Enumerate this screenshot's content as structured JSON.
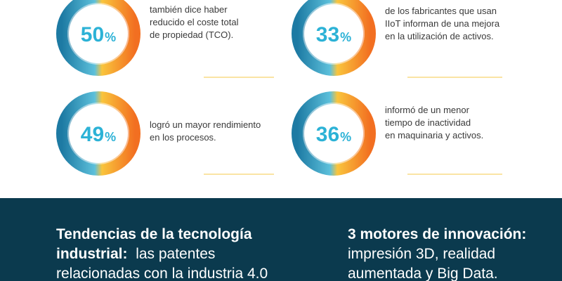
{
  "stats": [
    {
      "value": 50,
      "unit": "%",
      "lines": [
        "también dice haber",
        "reducido el coste total",
        "de propiedad (TCO)."
      ]
    },
    {
      "value": 33,
      "unit": "%",
      "lines": [
        "de los fabricantes que usan",
        "IIoT informan de una mejora",
        "en la utilización de activos."
      ]
    },
    {
      "value": 49,
      "unit": "%",
      "lines": [
        "logró un mayor rendimiento",
        "en los procesos."
      ]
    },
    {
      "value": 36,
      "unit": "%",
      "lines": [
        "informó de un menor",
        "tiempo de inactividad",
        "en maquinaria y activos."
      ]
    }
  ],
  "footer": [
    {
      "bold": "Tendencias de la tecnología industrial:",
      "text": "las patentes relacionadas con la industria 4.0"
    },
    {
      "bold": "3 motores de innovación:",
      "text": "impresión 3D, realidad aumentada y Big Data."
    }
  ]
}
